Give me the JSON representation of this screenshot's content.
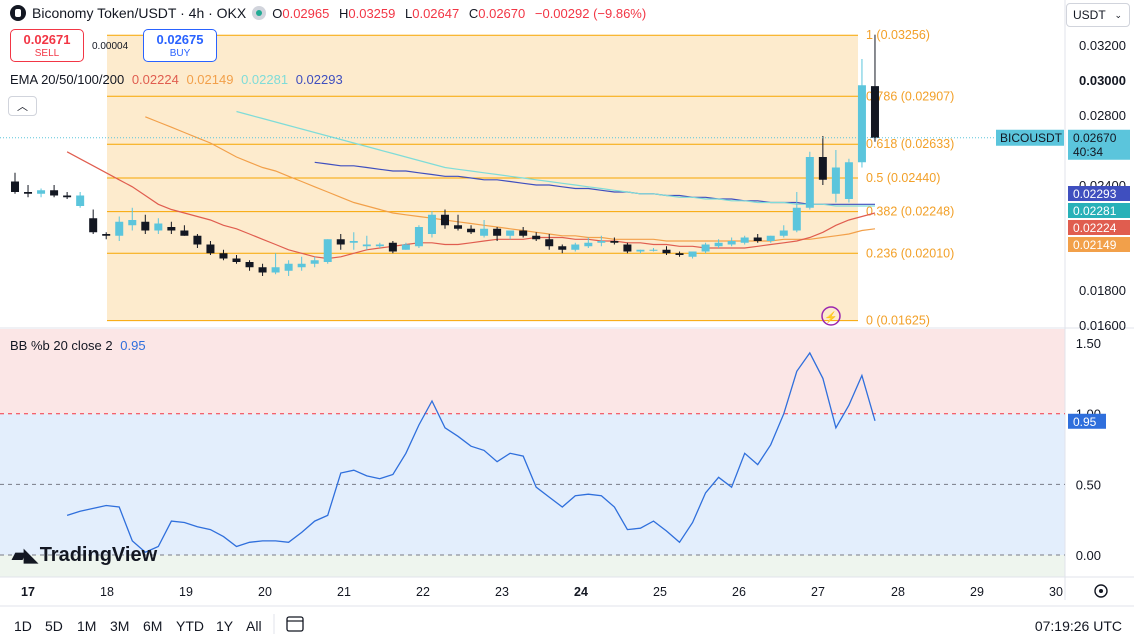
{
  "header": {
    "symbol": "Biconomy Token/USDT · 4h · OKX",
    "ohlc": [
      {
        "k": "O",
        "v": "0.02965"
      },
      {
        "k": "H",
        "v": "0.03259"
      },
      {
        "k": "L",
        "v": "0.02647"
      },
      {
        "k": "C",
        "v": "0.02670"
      }
    ],
    "change": "−0.00292 (−9.86%)"
  },
  "trade": {
    "sell_price": "0.02671",
    "sell_label": "SELL",
    "spread": "0.00004",
    "buy_price": "0.02675",
    "buy_label": "BUY"
  },
  "ema_legend": {
    "label": "EMA 20/50/100/200",
    "values": [
      "0.02224",
      "0.02149",
      "0.02281",
      "0.02293"
    ]
  },
  "currency": "USDT",
  "colors": {
    "up": "#5bc5dc",
    "down": "#131722",
    "ema20": "#e05d4f",
    "ema50": "#f2a04a",
    "ema100": "#7fdcd8",
    "ema200": "#3f4fbf",
    "fib": "#f7a600",
    "fib_fill": "#fde9c8",
    "bb_line": "#2f6fdc",
    "bb_fill": "#e3eefc",
    "bb_upper_fill": "#fbe6e6"
  },
  "fib_levels": [
    {
      "ratio": "1",
      "value": 0.03256,
      "label": "1 (0.03256)"
    },
    {
      "ratio": "0.786",
      "value": 0.02907,
      "label": "0.786 (0.02907)"
    },
    {
      "ratio": "0.618",
      "value": 0.02633,
      "label": "0.618 (0.02633)"
    },
    {
      "ratio": "0.5",
      "value": 0.0244,
      "label": "0.5 (0.02440)"
    },
    {
      "ratio": "0.382",
      "value": 0.02248,
      "label": "0.382 (0.02248)"
    },
    {
      "ratio": "0.236",
      "value": 0.0201,
      "label": "0.236 (0.02010)"
    },
    {
      "ratio": "0",
      "value": 0.01625,
      "label": "0 (0.01625)"
    }
  ],
  "price_axis": {
    "ticks": [
      {
        "v": 0.032,
        "label": "0.03200"
      },
      {
        "v": 0.03,
        "label": "0.03000"
      },
      {
        "v": 0.028,
        "label": "0.02800"
      },
      {
        "v": 0.024,
        "label": "0.02400"
      },
      {
        "v": 0.018,
        "label": "0.01800"
      },
      {
        "v": 0.016,
        "label": "0.01600"
      }
    ],
    "last_symbol": "BICOUSDT",
    "last_price": "0.02670",
    "countdown": "40:34",
    "tags": [
      {
        "v": 0.02293,
        "label": "0.02293",
        "color": "#3f4fbf"
      },
      {
        "v": 0.02281,
        "label": "0.02281",
        "color": "#27b1b8"
      },
      {
        "v": 0.02224,
        "label": "0.02224",
        "color": "#e05d4f"
      },
      {
        "v": 0.02149,
        "label": "0.02149",
        "color": "#f2a04a"
      }
    ]
  },
  "bb": {
    "label": "BB %b 20 close 2",
    "value": "0.95",
    "axis": [
      {
        "v": 1.5,
        "label": "1.50"
      },
      {
        "v": 1.0,
        "label": "1.00"
      },
      {
        "v": 0.5,
        "label": "0.50"
      },
      {
        "v": 0.0,
        "label": "0.00"
      }
    ]
  },
  "time_axis": [
    {
      "label": "17",
      "bold": true
    },
    {
      "label": "18",
      "bold": false
    },
    {
      "label": "19",
      "bold": false
    },
    {
      "label": "20",
      "bold": false
    },
    {
      "label": "21",
      "bold": false
    },
    {
      "label": "22",
      "bold": false
    },
    {
      "label": "23",
      "bold": false
    },
    {
      "label": "24",
      "bold": true
    },
    {
      "label": "25",
      "bold": false
    },
    {
      "label": "26",
      "bold": false
    },
    {
      "label": "27",
      "bold": false
    },
    {
      "label": "28",
      "bold": false
    },
    {
      "label": "29",
      "bold": false
    },
    {
      "label": "30",
      "bold": false
    }
  ],
  "timeframes": [
    "1D",
    "5D",
    "1M",
    "3M",
    "6M",
    "YTD",
    "1Y",
    "All"
  ],
  "clock": "07:19:26 UTC",
  "brand": "TradingView",
  "chart_data": {
    "type": "candlestick",
    "interval": "4h",
    "candles": [
      [
        0.0242,
        0.0247,
        0.0235,
        0.0236
      ],
      [
        0.0236,
        0.024,
        0.0233,
        0.0235
      ],
      [
        0.0235,
        0.0238,
        0.0233,
        0.0237
      ],
      [
        0.0237,
        0.024,
        0.0233,
        0.0234
      ],
      [
        0.0234,
        0.0236,
        0.0232,
        0.0233
      ],
      [
        0.0228,
        0.0236,
        0.0227,
        0.0234
      ],
      [
        0.0221,
        0.0226,
        0.0212,
        0.0213
      ],
      [
        0.0212,
        0.0213,
        0.0209,
        0.0211
      ],
      [
        0.0211,
        0.0222,
        0.0208,
        0.0219
      ],
      [
        0.0217,
        0.0227,
        0.0214,
        0.022
      ],
      [
        0.0219,
        0.0223,
        0.0212,
        0.0214
      ],
      [
        0.0214,
        0.0221,
        0.0212,
        0.0218
      ],
      [
        0.0216,
        0.0219,
        0.0212,
        0.0214
      ],
      [
        0.0214,
        0.0217,
        0.0211,
        0.0211
      ],
      [
        0.0211,
        0.0212,
        0.0204,
        0.0206
      ],
      [
        0.0206,
        0.0208,
        0.02,
        0.0201
      ],
      [
        0.0201,
        0.0203,
        0.0197,
        0.0198
      ],
      [
        0.0198,
        0.02,
        0.0195,
        0.0196
      ],
      [
        0.0196,
        0.0197,
        0.0191,
        0.0193
      ],
      [
        0.0193,
        0.0195,
        0.0188,
        0.019
      ],
      [
        0.019,
        0.0201,
        0.0189,
        0.0193
      ],
      [
        0.0191,
        0.0197,
        0.0188,
        0.0195
      ],
      [
        0.0193,
        0.0199,
        0.0191,
        0.0195
      ],
      [
        0.0195,
        0.0199,
        0.0193,
        0.0197
      ],
      [
        0.0196,
        0.0209,
        0.0195,
        0.0209
      ],
      [
        0.0209,
        0.0212,
        0.0203,
        0.0206
      ],
      [
        0.0207,
        0.0213,
        0.0203,
        0.0208
      ],
      [
        0.0205,
        0.0211,
        0.0203,
        0.0206
      ],
      [
        0.0205,
        0.0207,
        0.0204,
        0.0206
      ],
      [
        0.0207,
        0.0208,
        0.0201,
        0.0202
      ],
      [
        0.0203,
        0.0207,
        0.0203,
        0.0206
      ],
      [
        0.0205,
        0.0217,
        0.0204,
        0.0216
      ],
      [
        0.0212,
        0.0225,
        0.021,
        0.0223
      ],
      [
        0.0223,
        0.0226,
        0.0215,
        0.0217
      ],
      [
        0.0217,
        0.0223,
        0.0214,
        0.0215
      ],
      [
        0.0215,
        0.0217,
        0.0212,
        0.0213
      ],
      [
        0.0211,
        0.022,
        0.021,
        0.0215
      ],
      [
        0.0215,
        0.0216,
        0.0208,
        0.0211
      ],
      [
        0.0211,
        0.0214,
        0.0209,
        0.0214
      ],
      [
        0.0214,
        0.0216,
        0.021,
        0.0211
      ],
      [
        0.0211,
        0.0213,
        0.0208,
        0.0209
      ],
      [
        0.0209,
        0.0212,
        0.0203,
        0.0205
      ],
      [
        0.0205,
        0.0206,
        0.0201,
        0.0203
      ],
      [
        0.0203,
        0.0207,
        0.0202,
        0.0206
      ],
      [
        0.0205,
        0.021,
        0.0204,
        0.0207
      ],
      [
        0.0207,
        0.0211,
        0.0205,
        0.0208
      ],
      [
        0.0208,
        0.021,
        0.0206,
        0.0207
      ],
      [
        0.0206,
        0.0207,
        0.0201,
        0.0202
      ],
      [
        0.0202,
        0.0203,
        0.0201,
        0.0203
      ],
      [
        0.0203,
        0.0204,
        0.0202,
        0.0203
      ],
      [
        0.0203,
        0.0205,
        0.02,
        0.0201
      ],
      [
        0.0201,
        0.0202,
        0.0199,
        0.02
      ],
      [
        0.0199,
        0.0202,
        0.0198,
        0.0202
      ],
      [
        0.0202,
        0.0207,
        0.0201,
        0.0206
      ],
      [
        0.0205,
        0.0209,
        0.0204,
        0.0207
      ],
      [
        0.0206,
        0.021,
        0.0205,
        0.0208
      ],
      [
        0.0207,
        0.0211,
        0.0206,
        0.021
      ],
      [
        0.021,
        0.0212,
        0.0207,
        0.0208
      ],
      [
        0.0208,
        0.0211,
        0.0207,
        0.0211
      ],
      [
        0.0211,
        0.0217,
        0.021,
        0.0214
      ],
      [
        0.0214,
        0.0236,
        0.0213,
        0.0227
      ],
      [
        0.0227,
        0.0259,
        0.0226,
        0.0256
      ],
      [
        0.0256,
        0.0268,
        0.024,
        0.0243
      ],
      [
        0.0235,
        0.026,
        0.023,
        0.025
      ],
      [
        0.0232,
        0.0255,
        0.023,
        0.0253
      ],
      [
        0.0253,
        0.0312,
        0.025,
        0.0297
      ],
      [
        0.02965,
        0.03259,
        0.02647,
        0.0267
      ]
    ],
    "ema20": [
      0.0259,
      0.0255,
      0.0251,
      0.0247,
      0.0243,
      0.0239,
      0.0234,
      0.0229,
      0.0226,
      0.0224,
      0.0222,
      0.022,
      0.0217,
      0.0215,
      0.0212,
      0.0209,
      0.0206,
      0.0203,
      0.0201,
      0.0199,
      0.0198,
      0.0199,
      0.0201,
      0.0203,
      0.0204,
      0.0205,
      0.0206,
      0.0207,
      0.0207,
      0.0206,
      0.0206,
      0.0207,
      0.0208,
      0.0209,
      0.0209,
      0.0209,
      0.021,
      0.021,
      0.021,
      0.0209,
      0.0209,
      0.0208,
      0.0208,
      0.0207,
      0.0207,
      0.0206,
      0.0206,
      0.0205,
      0.0205,
      0.0204,
      0.0204,
      0.0204,
      0.0204,
      0.0205,
      0.0206,
      0.0207,
      0.0208,
      0.021,
      0.0213,
      0.0217,
      0.022,
      0.0222,
      0.0224
    ],
    "ema50": [
      0.0279,
      0.0276,
      0.0273,
      0.027,
      0.0267,
      0.0264,
      0.026,
      0.0256,
      0.0253,
      0.025,
      0.0248,
      0.0245,
      0.0242,
      0.0239,
      0.0236,
      0.0233,
      0.023,
      0.0228,
      0.0226,
      0.0224,
      0.0223,
      0.0222,
      0.0221,
      0.022,
      0.0219,
      0.0218,
      0.0217,
      0.0216,
      0.0215,
      0.0214,
      0.0213,
      0.0212,
      0.0211,
      0.0211,
      0.021,
      0.021,
      0.0209,
      0.0209,
      0.0209,
      0.0209,
      0.0208,
      0.0208,
      0.0208,
      0.0208,
      0.0208,
      0.0208,
      0.0208,
      0.0208,
      0.0208,
      0.0209,
      0.0209,
      0.0209,
      0.021,
      0.0211,
      0.0212,
      0.0214,
      0.0215
    ],
    "ema100": [
      0.0282,
      0.028,
      0.0278,
      0.0276,
      0.0274,
      0.0272,
      0.027,
      0.0268,
      0.0266,
      0.0264,
      0.0262,
      0.026,
      0.0258,
      0.0256,
      0.0254,
      0.0252,
      0.025,
      0.0249,
      0.0248,
      0.0247,
      0.0246,
      0.0245,
      0.0244,
      0.0243,
      0.0242,
      0.0241,
      0.024,
      0.0239,
      0.0238,
      0.0237,
      0.0236,
      0.0235,
      0.0235,
      0.0234,
      0.0233,
      0.0233,
      0.0232,
      0.0232,
      0.0231,
      0.0231,
      0.023,
      0.023,
      0.023,
      0.0229,
      0.0229,
      0.0229,
      0.0228,
      0.0228,
      0.0228,
      0.0228
    ],
    "ema200": [
      0.0253,
      0.0252,
      0.0251,
      0.0251,
      0.025,
      0.0249,
      0.0248,
      0.0248,
      0.0247,
      0.0246,
      0.0245,
      0.0245,
      0.0244,
      0.0243,
      0.0243,
      0.0242,
      0.0241,
      0.024,
      0.024,
      0.0239,
      0.0238,
      0.0238,
      0.0237,
      0.0236,
      0.0236,
      0.0235,
      0.0235,
      0.0234,
      0.0234,
      0.0233,
      0.0233,
      0.0232,
      0.0232,
      0.0231,
      0.0231,
      0.023,
      0.023,
      0.023,
      0.0229,
      0.0229,
      0.0229,
      0.0229,
      0.0229,
      0.0229
    ],
    "bb_pctb": [
      0.28,
      0.31,
      0.33,
      0.35,
      0.34,
      0.1,
      0.02,
      0.06,
      0.24,
      0.23,
      0.2,
      0.18,
      0.13,
      0.06,
      0.09,
      0.1,
      0.1,
      0.09,
      0.16,
      0.24,
      0.28,
      0.58,
      0.6,
      0.56,
      0.54,
      0.57,
      0.72,
      0.92,
      1.09,
      0.9,
      0.84,
      0.77,
      0.74,
      0.66,
      0.72,
      0.7,
      0.48,
      0.41,
      0.34,
      0.42,
      0.43,
      0.42,
      0.34,
      0.18,
      0.19,
      0.24,
      0.17,
      0.09,
      0.23,
      0.44,
      0.55,
      0.48,
      0.72,
      0.64,
      0.78,
      1.0,
      1.3,
      1.43,
      1.25,
      0.9,
      1.06,
      1.27,
      0.95
    ]
  }
}
